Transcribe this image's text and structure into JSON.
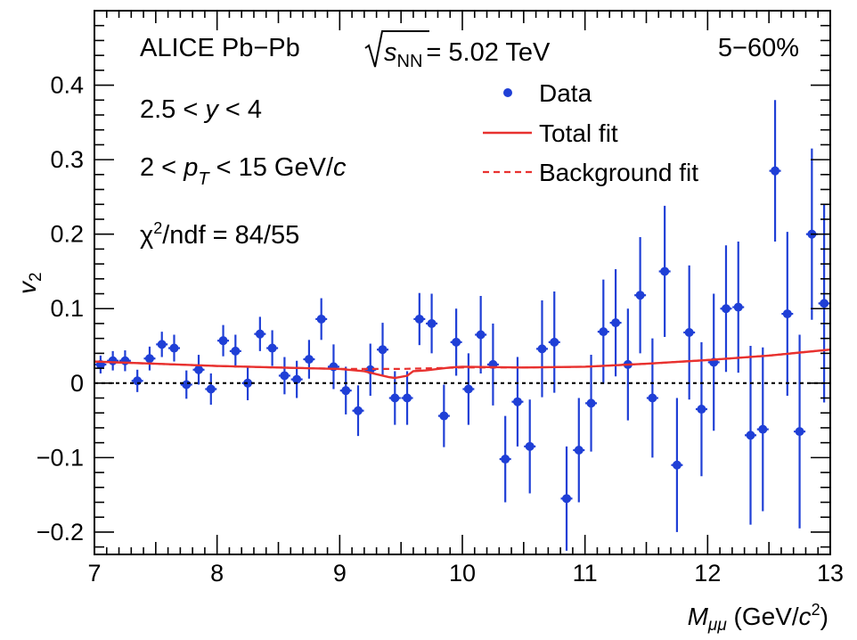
{
  "chart_data": {
    "type": "scatter",
    "title": "",
    "annotations": {
      "experiment": "ALICE Pb−Pb",
      "energy_value": "= 5.02 TeV",
      "energy_sub": "NN",
      "energy_var": "s",
      "centrality": "5−60%",
      "rapidity_left": "2.5 < ",
      "rapidity_var": "y",
      "rapidity_right": " < 4",
      "pt_left": "2 < ",
      "pt_var": "p",
      "pt_sub": "T",
      "pt_right": " < 15 GeV/",
      "pt_unit_var": "c",
      "chi2_symbol": "χ",
      "chi2_sup": "2",
      "chi2_rest": "/ndf = 84/55"
    },
    "xlabel": {
      "var": "M",
      "sub": "μμ",
      "unit_left": " (GeV/",
      "unit_var": "c",
      "unit_sup": "2",
      "unit_right": ")"
    },
    "ylabel": {
      "var": "v",
      "sub": "2"
    },
    "xlim": [
      7,
      13
    ],
    "ylim": [
      -0.23,
      0.5
    ],
    "xticks": [
      7,
      8,
      9,
      10,
      11,
      12,
      13
    ],
    "xtick_labels": [
      "7",
      "8",
      "9",
      "10",
      "11",
      "12",
      "13"
    ],
    "yticks": [
      -0.2,
      -0.1,
      0,
      0.1,
      0.2,
      0.3,
      0.4
    ],
    "ytick_labels": [
      "−0.2",
      "−0.1",
      "0",
      "0.1",
      "0.2",
      "0.3",
      "0.4"
    ],
    "zero_line": true,
    "legend": {
      "position": "top-right",
      "entries": [
        {
          "label": "Data",
          "marker": "point",
          "color": "#1f3fd6"
        },
        {
          "label": "Total fit",
          "marker": "solid-line",
          "color": "#e8312f"
        },
        {
          "label": "Background fit",
          "marker": "dashed-line",
          "color": "#e8312f"
        }
      ]
    },
    "colors": {
      "data": "#1f3fd6",
      "fit": "#e8312f",
      "axis": "#000000"
    },
    "series": [
      {
        "name": "Data",
        "type": "points_with_errors",
        "x": [
          7.05,
          7.15,
          7.25,
          7.35,
          7.45,
          7.55,
          7.65,
          7.75,
          7.85,
          7.95,
          8.05,
          8.15,
          8.25,
          8.35,
          8.45,
          8.55,
          8.65,
          8.75,
          8.85,
          8.95,
          9.05,
          9.15,
          9.25,
          9.35,
          9.45,
          9.55,
          9.65,
          9.75,
          9.85,
          9.95,
          10.05,
          10.15,
          10.25,
          10.35,
          10.45,
          10.55,
          10.65,
          10.75,
          10.85,
          10.95,
          11.05,
          11.15,
          11.25,
          11.35,
          11.45,
          11.55,
          11.65,
          11.75,
          11.85,
          11.95,
          12.05,
          12.15,
          12.25,
          12.35,
          12.45,
          12.55,
          12.65,
          12.75,
          12.85,
          12.95
        ],
        "y": [
          0.025,
          0.03,
          0.03,
          0.003,
          0.033,
          0.052,
          0.047,
          -0.002,
          0.018,
          -0.008,
          0.057,
          0.043,
          0.0,
          0.066,
          0.047,
          0.01,
          0.005,
          0.032,
          0.086,
          0.022,
          -0.01,
          -0.037,
          0.018,
          0.045,
          -0.02,
          -0.02,
          0.086,
          0.08,
          -0.044,
          0.055,
          -0.008,
          0.065,
          0.025,
          -0.102,
          -0.025,
          -0.085,
          0.046,
          0.055,
          -0.155,
          -0.09,
          -0.027,
          0.069,
          0.081,
          0.025,
          0.118,
          -0.02,
          0.15,
          -0.11,
          0.068,
          -0.035,
          0.028,
          0.1,
          0.102,
          -0.07,
          -0.062,
          0.285,
          0.093,
          -0.065,
          0.2,
          0.107
        ],
        "yerr": [
          0.012,
          0.013,
          0.014,
          0.015,
          0.016,
          0.017,
          0.018,
          0.019,
          0.02,
          0.021,
          0.021,
          0.022,
          0.023,
          0.023,
          0.024,
          0.025,
          0.025,
          0.026,
          0.028,
          0.03,
          0.032,
          0.034,
          0.035,
          0.036,
          0.036,
          0.036,
          0.035,
          0.04,
          0.042,
          0.045,
          0.048,
          0.052,
          0.055,
          0.058,
          0.06,
          0.063,
          0.065,
          0.068,
          0.07,
          0.07,
          0.065,
          0.07,
          0.072,
          0.075,
          0.078,
          0.08,
          0.088,
          0.09,
          0.09,
          0.09,
          0.092,
          0.085,
          0.088,
          0.12,
          0.11,
          0.095,
          0.11,
          0.13,
          0.115,
          0.133
        ]
      },
      {
        "name": "Total fit",
        "type": "line",
        "style": "solid",
        "x": [
          7.0,
          7.5,
          8.0,
          8.5,
          9.0,
          9.2,
          9.3,
          9.4,
          9.45,
          9.55,
          9.6,
          9.7,
          9.9,
          10.0,
          10.5,
          11.0,
          11.5,
          12.0,
          12.5,
          13.0
        ],
        "y": [
          0.029,
          0.026,
          0.023,
          0.021,
          0.019,
          0.016,
          0.012,
          0.008,
          0.007,
          0.01,
          0.016,
          0.017,
          0.021,
          0.022,
          0.021,
          0.022,
          0.026,
          0.031,
          0.037,
          0.045
        ]
      },
      {
        "name": "Background fit",
        "type": "line",
        "style": "dashed",
        "x": [
          7.0,
          7.5,
          8.0,
          8.5,
          9.0,
          9.5,
          10.0,
          10.5,
          11.0,
          11.5,
          12.0,
          12.5,
          13.0
        ],
        "y": [
          0.029,
          0.026,
          0.023,
          0.021,
          0.019,
          0.019,
          0.021,
          0.021,
          0.022,
          0.026,
          0.031,
          0.037,
          0.045
        ]
      }
    ]
  }
}
